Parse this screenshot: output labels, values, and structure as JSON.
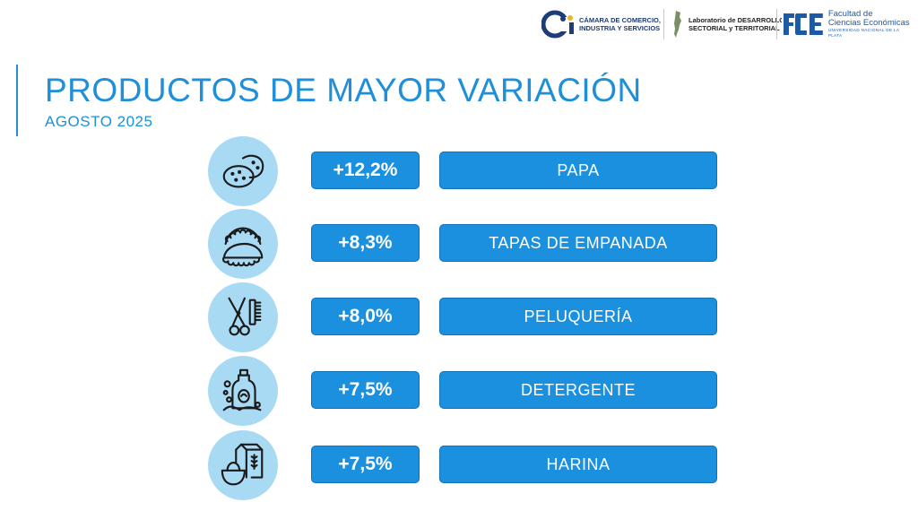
{
  "header": {
    "logos": {
      "ccis": {
        "line1": "CÁMARA DE COMERCIO,",
        "line2": "INDUSTRIA Y SERVICIOS"
      },
      "lab": {
        "line1": "Laboratorio de DESARROLLO",
        "line2": "SECTORIAL y TERRITORIAL"
      },
      "fce": {
        "line1": "Facultad de",
        "line2": "Ciencias Económicas",
        "line3": "UNIVERSIDAD NACIONAL DE LA PLATA"
      }
    }
  },
  "title": "PRODUCTOS DE MAYOR VARIACIÓN",
  "subtitle": "AGOSTO 2025",
  "items": [
    {
      "icon": "potato-icon",
      "pct": "+12,2%",
      "label": "PAPA"
    },
    {
      "icon": "empanada-icon",
      "pct": "+8,3%",
      "label": "TAPAS DE EMPANADA"
    },
    {
      "icon": "scissors-comb-icon",
      "pct": "+8,0%",
      "label": "PELUQUERÍA"
    },
    {
      "icon": "detergent-icon",
      "pct": "+7,5%",
      "label": "DETERGENTE"
    },
    {
      "icon": "flour-icon",
      "pct": "+7,5%",
      "label": "HARINA"
    }
  ],
  "colors": {
    "accent": "#1e8fd8",
    "box": "#1a90de",
    "circle": "#a9daf4"
  }
}
